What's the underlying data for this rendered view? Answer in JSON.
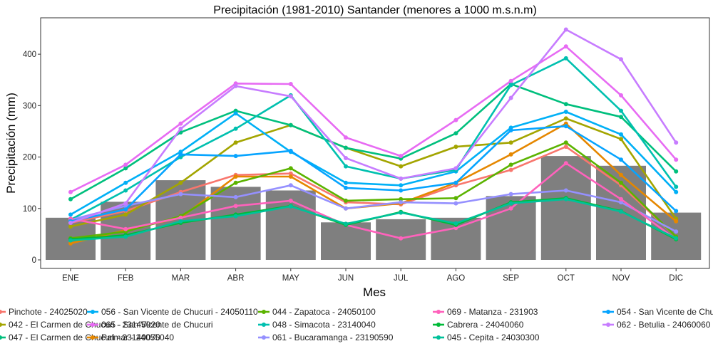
{
  "chart_data": {
    "type": "bar+line",
    "title": "Precipitación (1981-2010) Santander (menores a 1000 m.s.n.m)",
    "xlabel": "Mes",
    "ylabel": "Precipitación (mm)",
    "ylim": [
      0,
      450
    ],
    "yticks": [
      0,
      100,
      200,
      300,
      400
    ],
    "grid": false,
    "legend_position": "bottom",
    "categories": [
      "ENE",
      "FEB",
      "MAR",
      "ABR",
      "MAY",
      "JUN",
      "JUL",
      "AGO",
      "SEP",
      "OCT",
      "NOV",
      "DIC"
    ],
    "bars": {
      "color": "#7f7f7f",
      "values": [
        82,
        113,
        155,
        142,
        135,
        73,
        79,
        82,
        124,
        202,
        183,
        92
      ]
    },
    "series": [
      {
        "name": "Pinchote - 24025020",
        "color": "#f8766d",
        "values": [
          72,
          95,
          132,
          165,
          168,
          112,
          108,
          145,
          175,
          220,
          145,
          45
        ]
      },
      {
        "name": "042 - El Carmen de Chucuri - 23145020",
        "color": "#a3a500",
        "values": [
          65,
          88,
          150,
          228,
          262,
          218,
          182,
          220,
          228,
          275,
          235,
          80
        ]
      },
      {
        "name": "047 - El Carmen de Chucuri - 23140070",
        "color": "#00bf7d",
        "values": [
          118,
          178,
          248,
          290,
          262,
          218,
          197,
          246,
          342,
          303,
          278,
          172
        ]
      },
      {
        "name": "056 - San Vicente de Chucuri - 24050110",
        "color": "#00b0f6",
        "values": [
          88,
          150,
          210,
          285,
          210,
          150,
          145,
          172,
          257,
          288,
          244,
          132
        ]
      },
      {
        "name": "065 - San Vicente de Chucuri",
        "color": "#e76bf3",
        "values": [
          132,
          185,
          265,
          343,
          342,
          238,
          202,
          272,
          348,
          415,
          320,
          195
        ]
      },
      {
        "name": "Palmar - 24055040",
        "color": "#e58700",
        "values": [
          32,
          58,
          82,
          162,
          162,
          100,
          110,
          150,
          205,
          265,
          165,
          75
        ]
      },
      {
        "name": "044 - Zapatoca - 24050100",
        "color": "#5bb300",
        "values": [
          42,
          55,
          85,
          150,
          178,
          115,
          118,
          120,
          185,
          228,
          150,
          45
        ]
      },
      {
        "name": "048 - Simacota - 23140040",
        "color": "#00c0af",
        "values": [
          78,
          135,
          200,
          255,
          320,
          182,
          158,
          175,
          340,
          392,
          290,
          142
        ]
      },
      {
        "name": "061 - Bucaramanga - 23190590",
        "color": "#9590ff",
        "values": [
          78,
          105,
          128,
          122,
          145,
          100,
          112,
          110,
          128,
          135,
          112,
          55
        ]
      },
      {
        "name": "069 - Matanza - 231903",
        "color": "#ff62bc",
        "values": [
          80,
          60,
          82,
          105,
          115,
          68,
          42,
          62,
          100,
          188,
          118,
          40
        ]
      },
      {
        "name": "Cabrera - 24040060",
        "color": "#00ba38",
        "values": [
          40,
          48,
          72,
          88,
          105,
          68,
          93,
          68,
          112,
          120,
          95,
          40
        ]
      },
      {
        "name": "045 - Cepita - 24030300",
        "color": "#00c19a",
        "values": [
          38,
          45,
          75,
          85,
          104,
          70,
          92,
          71,
          110,
          118,
          94,
          42
        ]
      },
      {
        "name": "054 - San Vicente de Chucuri - 24050060",
        "color": "#06a4ff",
        "values": [
          75,
          98,
          205,
          202,
          212,
          140,
          135,
          150,
          252,
          260,
          195,
          95
        ]
      },
      {
        "name": "062 - Betulia - 24060060",
        "color": "#c77cff",
        "values": [
          72,
          110,
          255,
          338,
          318,
          198,
          158,
          178,
          315,
          448,
          390,
          228
        ]
      }
    ]
  }
}
